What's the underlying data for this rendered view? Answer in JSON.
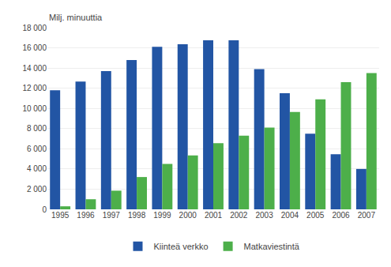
{
  "chart_data": {
    "type": "bar",
    "ylabel": "Milj. minuuttia",
    "categories": [
      "1995",
      "1996",
      "1997",
      "1998",
      "1999",
      "2000",
      "2001",
      "2002",
      "2003",
      "2004",
      "2005",
      "2006",
      "2007"
    ],
    "series": [
      {
        "name": "Kiinteä verkko",
        "color": "#2255A4",
        "values": [
          11800,
          12650,
          13700,
          14800,
          16100,
          16350,
          16750,
          16750,
          13900,
          11500,
          7500,
          5450,
          4000
        ]
      },
      {
        "name": "Matkaviestintä",
        "color": "#4DAF4A",
        "values": [
          300,
          1000,
          1850,
          3200,
          4500,
          5350,
          6550,
          7300,
          8100,
          9650,
          10900,
          12600,
          13500
        ]
      }
    ],
    "ylim": [
      0,
      18000
    ],
    "yticks": [
      0,
      {
        "value": 2000,
        "label": "2 000"
      },
      {
        "value": 4000,
        "label": "4 000"
      },
      {
        "value": 6000,
        "label": "6 000"
      },
      {
        "value": 8000,
        "label": "8 000"
      },
      {
        "value": 10000,
        "label": "10 000"
      },
      {
        "value": 12000,
        "label": "12 000"
      },
      {
        "value": 14000,
        "label": "14 000"
      },
      {
        "value": 16000,
        "label": "16 000"
      },
      {
        "value": 18000,
        "label": "18 000"
      }
    ],
    "grid": true,
    "legend": "bottom"
  }
}
